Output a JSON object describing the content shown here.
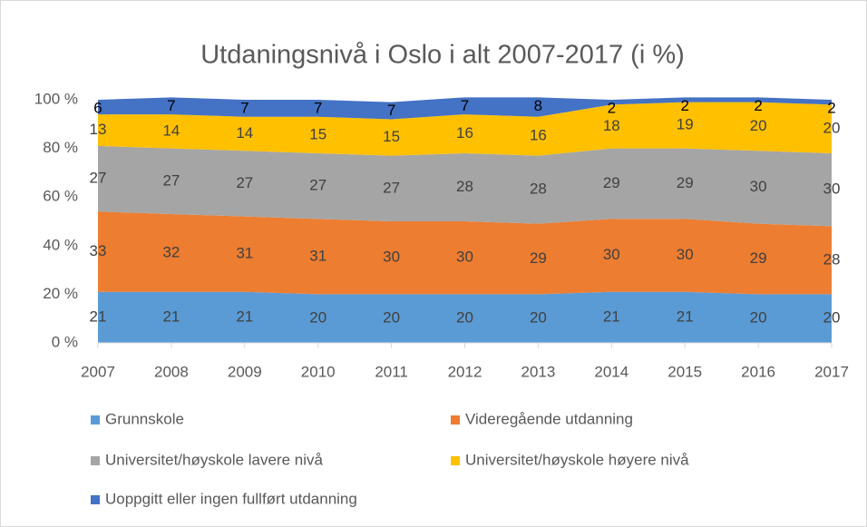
{
  "chart_data": {
    "type": "stacked_area",
    "title": "Utdaningsnivå i Oslo i alt 2007-2017 (i %)",
    "x": [
      2007,
      2008,
      2009,
      2010,
      2011,
      2012,
      2013,
      2014,
      2015,
      2016,
      2017
    ],
    "xlim": [
      2007,
      2017
    ],
    "ylim": [
      0,
      100
    ],
    "yticks": [
      {
        "value": 0,
        "label": "0 %"
      },
      {
        "value": 20,
        "label": "20 %"
      },
      {
        "value": 40,
        "label": "40 %"
      },
      {
        "value": 60,
        "label": "60 %"
      },
      {
        "value": 80,
        "label": "80 %"
      },
      {
        "value": 100,
        "label": "100 %"
      }
    ],
    "series": [
      {
        "name": "Grunnskole",
        "color": "#5b9bd5",
        "values": [
          21,
          21,
          21,
          20,
          20,
          20,
          20,
          21,
          21,
          20,
          20
        ]
      },
      {
        "name": "Videregående utdanning",
        "color": "#ed7d31",
        "values": [
          33,
          32,
          31,
          31,
          30,
          30,
          29,
          30,
          30,
          29,
          28
        ]
      },
      {
        "name": "Universitet/høyskole lavere nivå",
        "color": "#a5a5a5",
        "values": [
          27,
          27,
          27,
          27,
          27,
          28,
          28,
          29,
          29,
          30,
          30
        ]
      },
      {
        "name": "Universitet/høyskole høyere nivå",
        "color": "#ffc000",
        "values": [
          13,
          14,
          14,
          15,
          15,
          16,
          16,
          18,
          19,
          20,
          20
        ]
      },
      {
        "name": "Uoppgitt eller ingen fullført utdanning",
        "color": "#4472c4",
        "values": [
          6,
          7,
          7,
          7,
          7,
          7,
          8,
          2,
          2,
          2,
          2
        ]
      }
    ]
  }
}
